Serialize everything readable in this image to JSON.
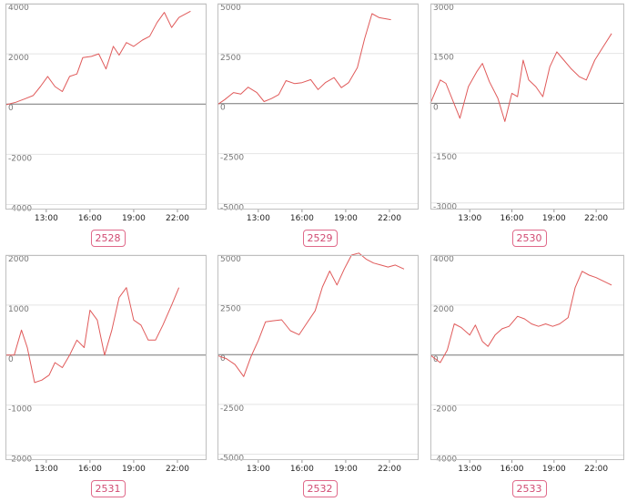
{
  "colors": {
    "line": "#e05a5a",
    "frame": "#bfbfbf",
    "grid": "#e4e4e4",
    "zero": "#777777",
    "badge": "#d14a72"
  },
  "chart_data": [
    {
      "type": "line",
      "label": "2528",
      "ylim": [
        -4200,
        4000
      ],
      "yticks": [
        4000,
        2000,
        0,
        -2000,
        -4000
      ],
      "xlim": [
        10.2,
        24.0
      ],
      "xticks": [
        13,
        16,
        19,
        22
      ],
      "xtick_labels": [
        "13:00",
        "16:00",
        "19:00",
        "22:00"
      ],
      "series": [
        {
          "x": [
            10.2,
            10.9,
            11.5,
            12.1,
            12.6,
            13.1,
            13.6,
            14.1,
            14.6,
            15.1,
            15.5,
            16.1,
            16.6,
            17.1,
            17.6,
            18.0,
            18.5,
            19.0,
            19.6,
            20.1,
            20.6,
            21.1,
            21.6,
            22.1,
            22.9
          ],
          "y": [
            -30,
            70,
            200,
            340,
            700,
            1100,
            700,
            500,
            1100,
            1200,
            1850,
            1900,
            2000,
            1400,
            2300,
            1950,
            2450,
            2300,
            2550,
            2700,
            3250,
            3650,
            3050,
            3450,
            3700
          ]
        }
      ]
    },
    {
      "type": "line",
      "label": "2529",
      "ylim": [
        -5300,
        5000
      ],
      "yticks": [
        5000,
        2500,
        0,
        -2500,
        -5000
      ],
      "xlim": [
        10.2,
        24.0
      ],
      "xticks": [
        13,
        16,
        19,
        22
      ],
      "xtick_labels": [
        "13:00",
        "16:00",
        "19:00",
        "22:00"
      ],
      "series": [
        {
          "x": [
            10.2,
            10.7,
            11.3,
            11.8,
            12.3,
            12.9,
            13.4,
            13.9,
            14.4,
            14.9,
            15.5,
            16.0,
            16.6,
            17.1,
            17.6,
            18.2,
            18.7,
            19.2,
            19.8,
            20.3,
            20.8,
            21.3,
            22.1
          ],
          "y": [
            -50,
            200,
            550,
            480,
            820,
            550,
            100,
            250,
            450,
            1150,
            1000,
            1050,
            1200,
            700,
            1050,
            1300,
            800,
            1050,
            1800,
            3250,
            4500,
            4300,
            4200
          ]
        }
      ]
    },
    {
      "type": "line",
      "label": "2530",
      "ylim": [
        -3200,
        3000
      ],
      "yticks": [
        3000,
        1500,
        0,
        -1500,
        -3000
      ],
      "xlim": [
        10.2,
        24.0
      ],
      "xticks": [
        13,
        16,
        19,
        22
      ],
      "xtick_labels": [
        "13:00",
        "16:00",
        "19:00",
        "22:00"
      ],
      "series": [
        {
          "x": [
            10.2,
            10.9,
            11.3,
            12.3,
            12.9,
            13.5,
            13.9,
            14.4,
            15.0,
            15.5,
            16.0,
            16.4,
            16.8,
            17.2,
            17.7,
            18.2,
            18.7,
            19.2,
            19.7,
            20.2,
            20.8,
            21.3,
            21.9,
            22.5,
            23.1
          ],
          "y": [
            0,
            700,
            600,
            -450,
            500,
            950,
            1200,
            650,
            150,
            -550,
            300,
            200,
            1300,
            700,
            500,
            200,
            1100,
            1550,
            1300,
            1050,
            800,
            700,
            1300,
            1700,
            2100
          ]
        }
      ]
    },
    {
      "type": "line",
      "label": "2531",
      "ylim": [
        -2100,
        2000
      ],
      "yticks": [
        2000,
        1000,
        0,
        -1000,
        -2000
      ],
      "xlim": [
        10.2,
        24.0
      ],
      "xticks": [
        13,
        16,
        19,
        22
      ],
      "xtick_labels": [
        "13:00",
        "16:00",
        "19:00",
        "22:00"
      ],
      "series": [
        {
          "x": [
            10.2,
            10.8,
            11.3,
            11.7,
            12.2,
            12.7,
            13.2,
            13.6,
            14.1,
            14.6,
            15.1,
            15.6,
            16.0,
            16.5,
            17.0,
            17.5,
            18.0,
            18.5,
            19.0,
            19.5,
            20.0,
            20.5,
            21.0,
            21.6,
            22.1
          ],
          "y": [
            0,
            0,
            500,
            150,
            -550,
            -500,
            -400,
            -150,
            -250,
            0,
            300,
            150,
            900,
            700,
            0,
            500,
            1150,
            1350,
            700,
            600,
            300,
            300,
            600,
            1000,
            1350
          ]
        }
      ]
    },
    {
      "type": "line",
      "label": "2532",
      "ylim": [
        -5300,
        5000
      ],
      "yticks": [
        5000,
        2500,
        0,
        -2500,
        -5000
      ],
      "xlim": [
        10.2,
        24.0
      ],
      "xticks": [
        13,
        16,
        19,
        22
      ],
      "xtick_labels": [
        "13:00",
        "16:00",
        "19:00",
        "22:00"
      ],
      "series": [
        {
          "x": [
            10.2,
            10.8,
            11.4,
            12.0,
            12.5,
            13.0,
            13.5,
            14.0,
            14.6,
            15.2,
            15.8,
            16.3,
            16.9,
            17.4,
            17.9,
            18.4,
            18.9,
            19.4,
            19.9,
            20.4,
            20.9,
            21.4,
            21.9,
            22.4,
            23.0
          ],
          "y": [
            -50,
            -200,
            -500,
            -1100,
            -100,
            700,
            1650,
            1700,
            1750,
            1200,
            1000,
            1550,
            2200,
            3400,
            4200,
            3500,
            4300,
            5000,
            5100,
            4800,
            4600,
            4500,
            4400,
            4500,
            4300
          ]
        }
      ]
    },
    {
      "type": "line",
      "label": "2533",
      "ylim": [
        -4200,
        4000
      ],
      "yticks": [
        4000,
        2000,
        0,
        -2000,
        -4000
      ],
      "xlim": [
        10.2,
        24.0
      ],
      "xticks": [
        13,
        16,
        19,
        22
      ],
      "xtick_labels": [
        "13:00",
        "16:00",
        "19:00",
        "22:00"
      ],
      "series": [
        {
          "x": [
            10.2,
            10.9,
            11.4,
            11.9,
            12.4,
            13.0,
            13.4,
            13.9,
            14.3,
            14.8,
            15.3,
            15.8,
            16.4,
            16.9,
            17.4,
            17.9,
            18.4,
            18.9,
            19.4,
            20.0,
            20.5,
            21.0,
            21.5,
            22.0,
            23.1
          ],
          "y": [
            0,
            -300,
            200,
            1250,
            1100,
            800,
            1200,
            550,
            350,
            800,
            1050,
            1150,
            1550,
            1450,
            1250,
            1150,
            1250,
            1150,
            1250,
            1500,
            2700,
            3350,
            3200,
            3100,
            2800
          ]
        }
      ]
    }
  ]
}
